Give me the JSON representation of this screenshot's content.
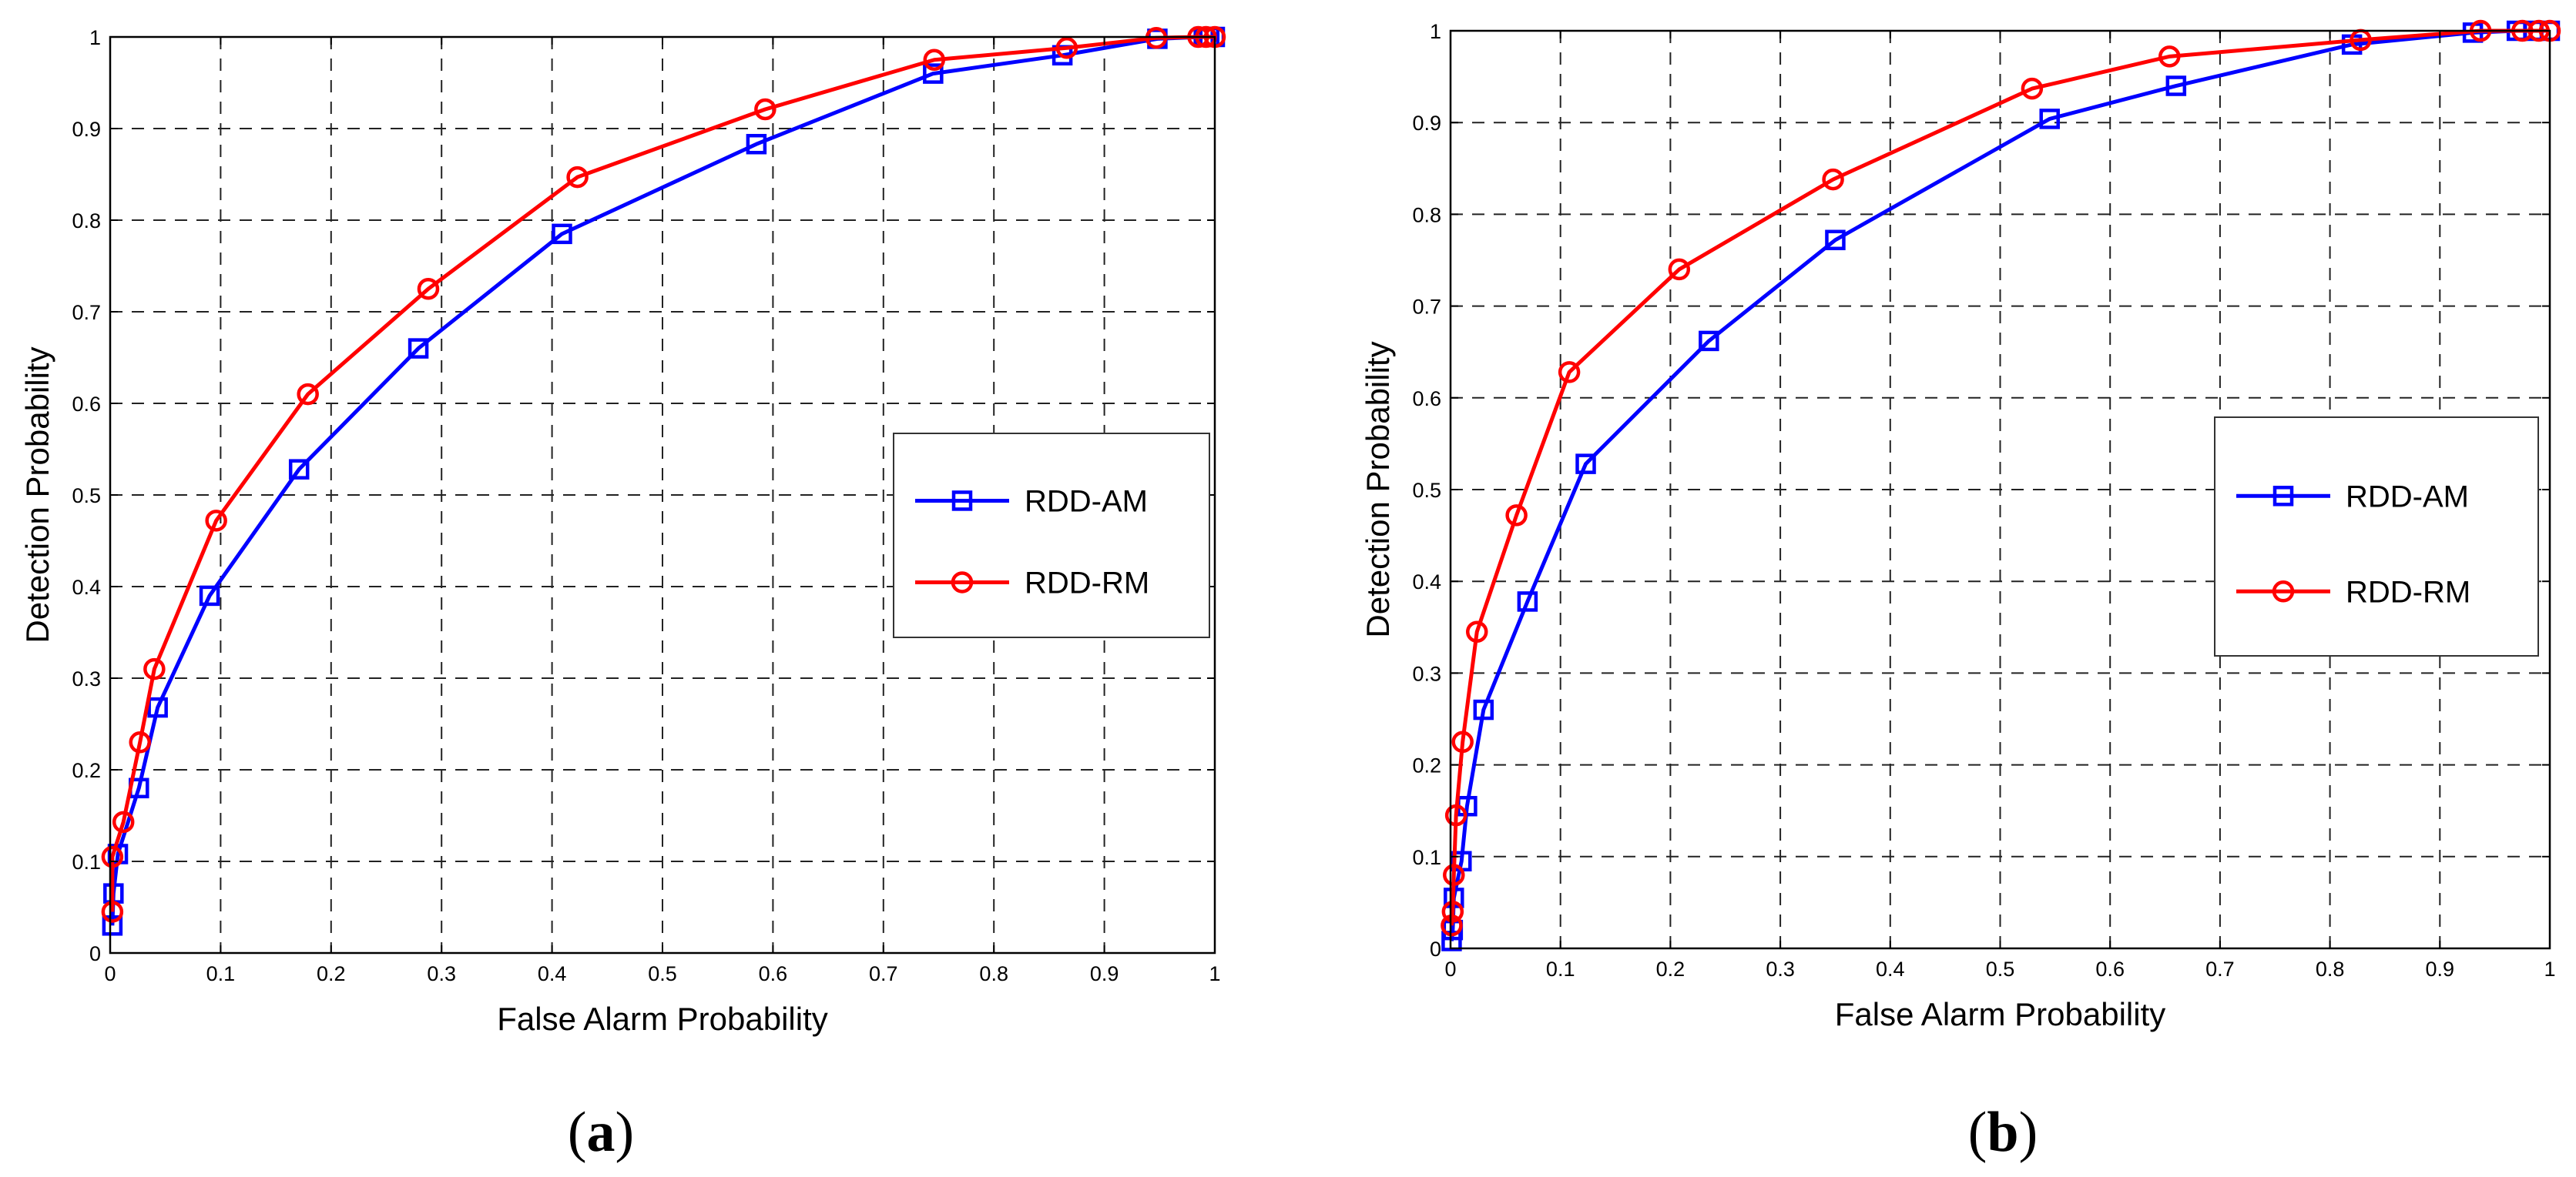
{
  "chart_data": [
    {
      "type": "line",
      "panel_label": "a",
      "xlabel": "False Alarm Probability",
      "ylabel": "Detection Probability",
      "xlim": [
        0,
        1
      ],
      "ylim": [
        0,
        1
      ],
      "xticks": [
        "0",
        "0.1",
        "0.2",
        "0.3",
        "0.4",
        "0.5",
        "0.6",
        "0.7",
        "0.8",
        "0.9",
        "1"
      ],
      "yticks": [
        "0",
        "0.1",
        "0.2",
        "0.3",
        "0.4",
        "0.5",
        "0.6",
        "0.7",
        "0.8",
        "0.9",
        "1"
      ],
      "grid": true,
      "legend_position": "right",
      "series": [
        {
          "name": "RDD-AM",
          "color": "#0000ff",
          "marker": "square",
          "x": [
            0.002,
            0.003,
            0.007,
            0.026,
            0.043,
            0.09,
            0.171,
            0.279,
            0.409,
            0.585,
            0.745,
            0.862,
            0.948,
            0.99,
            0.995,
            1.0
          ],
          "y": [
            0.03,
            0.065,
            0.108,
            0.18,
            0.268,
            0.39,
            0.528,
            0.66,
            0.785,
            0.883,
            0.96,
            0.98,
            0.998,
            1.0,
            1.0,
            1.0
          ]
        },
        {
          "name": "RDD-RM",
          "color": "#ff0000",
          "marker": "circle",
          "x": [
            0.002,
            0.002,
            0.012,
            0.027,
            0.04,
            0.096,
            0.179,
            0.288,
            0.423,
            0.593,
            0.746,
            0.866,
            0.947,
            0.985,
            0.992,
            1.0
          ],
          "y": [
            0.045,
            0.105,
            0.143,
            0.23,
            0.31,
            0.472,
            0.61,
            0.725,
            0.847,
            0.921,
            0.975,
            0.988,
            0.999,
            1.0,
            1.0,
            1.0
          ]
        }
      ]
    },
    {
      "type": "line",
      "panel_label": "b",
      "xlabel": "False Alarm Probability",
      "ylabel": "Detection Probability",
      "xlim": [
        0,
        1
      ],
      "ylim": [
        0,
        1
      ],
      "xticks": [
        "0",
        "0.1",
        "0.2",
        "0.3",
        "0.4",
        "0.5",
        "0.6",
        "0.7",
        "0.8",
        "0.9",
        "1"
      ],
      "yticks": [
        "0",
        "0.1",
        "0.2",
        "0.3",
        "0.4",
        "0.5",
        "0.6",
        "0.7",
        "0.8",
        "0.9",
        "1"
      ],
      "grid": true,
      "legend_position": "right",
      "series": [
        {
          "name": "RDD-AM",
          "color": "#0000ff",
          "marker": "square",
          "x": [
            0.001,
            0.002,
            0.003,
            0.01,
            0.015,
            0.03,
            0.07,
            0.123,
            0.235,
            0.35,
            0.545,
            0.66,
            0.82,
            0.93,
            0.97,
            0.985,
            1.0
          ],
          "y": [
            0.008,
            0.02,
            0.055,
            0.095,
            0.155,
            0.26,
            0.378,
            0.528,
            0.662,
            0.772,
            0.904,
            0.94,
            0.985,
            0.998,
            1.0,
            1.0,
            1.0
          ]
        },
        {
          "name": "RDD-RM",
          "color": "#ff0000",
          "marker": "circle",
          "x": [
            0.001,
            0.002,
            0.003,
            0.005,
            0.011,
            0.024,
            0.06,
            0.108,
            0.208,
            0.348,
            0.529,
            0.654,
            0.828,
            0.937,
            0.975,
            0.99,
            1.0
          ],
          "y": [
            0.025,
            0.04,
            0.08,
            0.145,
            0.225,
            0.345,
            0.472,
            0.628,
            0.74,
            0.838,
            0.937,
            0.972,
            0.99,
            1.0,
            1.0,
            1.0,
            1.0
          ]
        }
      ]
    }
  ]
}
